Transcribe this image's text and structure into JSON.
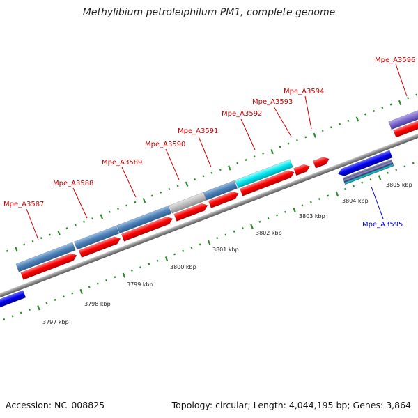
{
  "title": "Methylibium petroleiphilum PM1, complete genome",
  "footer": {
    "accession": "Accession: NC_008825",
    "summary": "Topology: circular; Length: 4,044,195 bp; Genes: 3,864"
  },
  "colors": {
    "backbone": "#8a8a8a",
    "tick_dots": "#2e8b2e",
    "cds_forward": "#ff0000",
    "gene_steelblue": "#4a7fb5",
    "gene_grey": "#bdbdbd",
    "gene_cyan": "#00e5ee",
    "gene_blue": "#0000ee",
    "gene_violet": "#7b68cc",
    "label_red": "#cc0000",
    "label_blue": "#0000cc"
  },
  "scale": {
    "unit": "kbp",
    "ticks": [
      "3797 kbp",
      "3798 kbp",
      "3799 kbp",
      "3800 kbp",
      "3801 kbp",
      "3802 kbp",
      "3803 kbp",
      "3804 kbp",
      "3805 kbp"
    ]
  },
  "gene_labels": [
    {
      "name": "Mpe_A3587",
      "strand": "forward"
    },
    {
      "name": "Mpe_A3588",
      "strand": "forward"
    },
    {
      "name": "Mpe_A3589",
      "strand": "forward"
    },
    {
      "name": "Mpe_A3590",
      "strand": "forward"
    },
    {
      "name": "Mpe_A3591",
      "strand": "forward"
    },
    {
      "name": "Mpe_A3592",
      "strand": "forward"
    },
    {
      "name": "Mpe_A3593",
      "strand": "forward"
    },
    {
      "name": "Mpe_A3594",
      "strand": "forward"
    },
    {
      "name": "Mpe_A3596",
      "strand": "forward"
    },
    {
      "name": "Mpe_A3595",
      "strand": "reverse"
    }
  ]
}
